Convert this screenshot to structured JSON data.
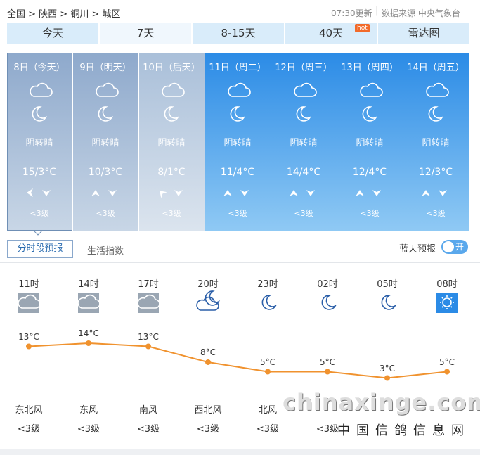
{
  "breadcrumb": "全国 > 陕西 > 铜川 > 城区",
  "update": "07:30更新",
  "source": "数据来源 中央气象台",
  "tabs": [
    "今天",
    "7天",
    "8-15天",
    "40天",
    "雷达图"
  ],
  "hot_badge": "hot",
  "days": [
    {
      "date": "8日（今天）",
      "weather": "阴转晴",
      "temp": "15/3°C",
      "wind": "<3级"
    },
    {
      "date": "9日（明天）",
      "weather": "阴转晴",
      "temp": "10/3°C",
      "wind": "<3级"
    },
    {
      "date": "10日（后天）",
      "weather": "阴转晴",
      "temp": "8/1°C",
      "wind": "<3级"
    },
    {
      "date": "11日（周二）",
      "weather": "阴转晴",
      "temp": "11/4°C",
      "wind": "<3级"
    },
    {
      "date": "12日（周三）",
      "weather": "阴转晴",
      "temp": "14/4°C",
      "wind": "<3级"
    },
    {
      "date": "13日（周四）",
      "weather": "阴转晴",
      "temp": "12/4°C",
      "wind": "<3级"
    },
    {
      "date": "14日（周五）",
      "weather": "阴转晴",
      "temp": "12/3°C",
      "wind": "<3级"
    }
  ],
  "subtabs": [
    "分时段预报",
    "生活指数"
  ],
  "toggle_label": "蓝天预报",
  "toggle_state": "开",
  "hourly": [
    {
      "time": "11时",
      "temp": 13,
      "temp_label": "13°C",
      "wind": "东北风",
      "level": "<3级"
    },
    {
      "time": "14时",
      "temp": 14,
      "temp_label": "14°C",
      "wind": "东风",
      "level": "<3级"
    },
    {
      "time": "17时",
      "temp": 13,
      "temp_label": "13°C",
      "wind": "南风",
      "level": "<3级"
    },
    {
      "time": "20时",
      "temp": 8,
      "temp_label": "8°C",
      "wind": "西北风",
      "level": "<3级"
    },
    {
      "time": "23时",
      "temp": 5,
      "temp_label": "5°C",
      "wind": "北风",
      "level": "<3级"
    },
    {
      "time": "02时",
      "temp": 5,
      "temp_label": "5°C",
      "level": "<3级"
    },
    {
      "time": "05时",
      "temp": 3,
      "temp_label": "3°C"
    },
    {
      "time": "08时",
      "temp": 5,
      "temp_label": "5°C"
    }
  ],
  "watermark": {
    "domain": "chinaxinge.com",
    "site": "中国信鸽信息网"
  }
}
